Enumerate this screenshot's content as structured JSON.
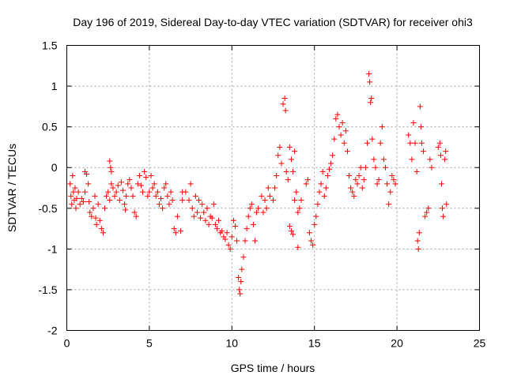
{
  "chart_data": {
    "type": "scatter",
    "title": "Day 196 of 2019, Sidereal Day-to-day VTEC variation (SDTVAR) for receiver ohi3",
    "xlabel": "GPS time / hours",
    "ylabel": "SDTVAR / TECUs",
    "xlim": [
      0,
      25
    ],
    "ylim": [
      -2,
      1.5
    ],
    "x_ticks": [
      0,
      5,
      10,
      15,
      20,
      25
    ],
    "x_tick_labels": [
      "0",
      "5",
      "10",
      "15",
      "20",
      "25"
    ],
    "y_ticks": [
      -2,
      -1.5,
      -1,
      -0.5,
      0,
      0.5,
      1,
      1.5
    ],
    "y_tick_labels": [
      "-2",
      "-1.5",
      "-1",
      "-0.5",
      "0",
      "0.5",
      "1",
      "1.5"
    ],
    "grid": true,
    "marker": "+",
    "color": "#ff0000",
    "series": [
      {
        "name": "SDTVAR",
        "points": [
          [
            0.2,
            -0.2
          ],
          [
            0.25,
            -0.35
          ],
          [
            0.3,
            -0.45
          ],
          [
            0.35,
            -0.1
          ],
          [
            0.4,
            -0.3
          ],
          [
            0.45,
            -0.4
          ],
          [
            0.5,
            -0.25
          ],
          [
            0.55,
            -0.5
          ],
          [
            0.6,
            -0.38
          ],
          [
            0.7,
            -0.3
          ],
          [
            0.8,
            -0.45
          ],
          [
            0.9,
            -0.38
          ],
          [
            1.0,
            -0.42
          ],
          [
            1.1,
            -0.3
          ],
          [
            1.1,
            -0.05
          ],
          [
            1.2,
            -0.08
          ],
          [
            1.3,
            -0.2
          ],
          [
            1.35,
            -0.42
          ],
          [
            1.4,
            -0.55
          ],
          [
            1.5,
            -0.6
          ],
          [
            1.6,
            -0.5
          ],
          [
            1.7,
            -0.35
          ],
          [
            1.75,
            -0.62
          ],
          [
            1.8,
            -0.7
          ],
          [
            1.9,
            -0.45
          ],
          [
            2.0,
            -0.65
          ],
          [
            2.1,
            -0.75
          ],
          [
            2.2,
            -0.8
          ],
          [
            2.3,
            -0.5
          ],
          [
            2.4,
            -0.35
          ],
          [
            2.5,
            -0.3
          ],
          [
            2.6,
            -0.4
          ],
          [
            2.7,
            -0.2
          ],
          [
            2.6,
            0.08
          ],
          [
            2.65,
            0.0
          ],
          [
            2.7,
            -0.05
          ],
          [
            2.8,
            -0.25
          ],
          [
            2.9,
            -0.35
          ],
          [
            3.0,
            -0.3
          ],
          [
            3.1,
            -0.22
          ],
          [
            3.2,
            -0.4
          ],
          [
            3.3,
            -0.18
          ],
          [
            3.4,
            -0.28
          ],
          [
            3.5,
            -0.45
          ],
          [
            3.55,
            -0.52
          ],
          [
            3.6,
            -0.35
          ],
          [
            3.7,
            -0.2
          ],
          [
            3.8,
            -0.15
          ],
          [
            3.9,
            -0.25
          ],
          [
            4.0,
            -0.35
          ],
          [
            4.1,
            -0.55
          ],
          [
            4.2,
            -0.6
          ],
          [
            4.3,
            -0.2
          ],
          [
            4.4,
            -0.1
          ],
          [
            4.5,
            -0.22
          ],
          [
            4.6,
            -0.3
          ],
          [
            4.7,
            -0.05
          ],
          [
            4.8,
            -0.12
          ],
          [
            4.9,
            -0.35
          ],
          [
            5.0,
            -0.3
          ],
          [
            5.1,
            -0.1
          ],
          [
            5.2,
            -0.25
          ],
          [
            5.3,
            -0.2
          ],
          [
            5.4,
            -0.35
          ],
          [
            5.5,
            -0.3
          ],
          [
            5.6,
            -0.45
          ],
          [
            5.7,
            -0.38
          ],
          [
            5.8,
            -0.5
          ],
          [
            5.9,
            -0.25
          ],
          [
            6.0,
            -0.2
          ],
          [
            6.1,
            -0.35
          ],
          [
            6.2,
            -0.45
          ],
          [
            6.3,
            -0.3
          ],
          [
            6.4,
            -0.4
          ],
          [
            6.5,
            -0.75
          ],
          [
            6.6,
            -0.8
          ],
          [
            6.7,
            -0.6
          ],
          [
            6.9,
            -0.78
          ],
          [
            7.0,
            -0.4
          ],
          [
            7.0,
            -0.3
          ],
          [
            7.2,
            -0.3
          ],
          [
            7.4,
            -0.4
          ],
          [
            7.5,
            -0.2
          ],
          [
            7.6,
            -0.5
          ],
          [
            7.7,
            -0.6
          ],
          [
            7.8,
            -0.35
          ],
          [
            7.9,
            -0.55
          ],
          [
            8.0,
            -0.4
          ],
          [
            8.1,
            -0.62
          ],
          [
            8.2,
            -0.45
          ],
          [
            8.3,
            -0.55
          ],
          [
            8.4,
            -0.65
          ],
          [
            8.5,
            -0.5
          ],
          [
            8.6,
            -0.7
          ],
          [
            8.7,
            -0.6
          ],
          [
            8.8,
            -0.62
          ],
          [
            8.9,
            -0.45
          ],
          [
            9.0,
            -0.7
          ],
          [
            9.1,
            -0.75
          ],
          [
            9.2,
            -0.65
          ],
          [
            9.3,
            -0.8
          ],
          [
            9.4,
            -0.78
          ],
          [
            9.5,
            -0.85
          ],
          [
            9.6,
            -0.88
          ],
          [
            9.7,
            -0.8
          ],
          [
            9.8,
            -0.95
          ],
          [
            9.9,
            -1.0
          ],
          [
            10.0,
            -0.85
          ],
          [
            10.1,
            -0.65
          ],
          [
            10.2,
            -0.72
          ],
          [
            10.3,
            -0.9
          ],
          [
            10.4,
            -1.35
          ],
          [
            10.45,
            -1.5
          ],
          [
            10.5,
            -1.55
          ],
          [
            10.55,
            -1.4
          ],
          [
            10.6,
            -1.25
          ],
          [
            10.7,
            -1.1
          ],
          [
            10.8,
            -0.9
          ],
          [
            10.9,
            -0.75
          ],
          [
            11.0,
            -0.6
          ],
          [
            11.1,
            -0.5
          ],
          [
            11.2,
            -0.45
          ],
          [
            11.3,
            -0.7
          ],
          [
            11.4,
            -0.9
          ],
          [
            11.5,
            -0.55
          ],
          [
            11.6,
            -0.5
          ],
          [
            11.8,
            -0.35
          ],
          [
            11.9,
            -0.55
          ],
          [
            12.0,
            -0.4
          ],
          [
            12.1,
            -0.5
          ],
          [
            12.2,
            -0.25
          ],
          [
            12.3,
            -0.35
          ],
          [
            12.5,
            -0.4
          ],
          [
            12.6,
            -0.25
          ],
          [
            12.7,
            -0.1
          ],
          [
            12.8,
            0.15
          ],
          [
            12.9,
            0.25
          ],
          [
            13.0,
            0.05
          ],
          [
            13.1,
            0.78
          ],
          [
            13.2,
            0.85
          ],
          [
            13.25,
            0.7
          ],
          [
            13.3,
            -0.05
          ],
          [
            13.4,
            -0.15
          ],
          [
            13.5,
            0.25
          ],
          [
            13.6,
            0.1
          ],
          [
            13.7,
            -0.05
          ],
          [
            13.8,
            0.2
          ],
          [
            13.5,
            -0.72
          ],
          [
            13.6,
            -0.78
          ],
          [
            13.7,
            -0.82
          ],
          [
            13.8,
            -0.4
          ],
          [
            13.9,
            -0.3
          ],
          [
            14.0,
            -0.55
          ],
          [
            14.1,
            -0.5
          ],
          [
            14.2,
            -0.4
          ],
          [
            14.0,
            -0.98
          ],
          [
            14.5,
            -0.2
          ],
          [
            14.6,
            -0.15
          ],
          [
            14.7,
            -0.8
          ],
          [
            14.8,
            -0.9
          ],
          [
            14.9,
            -0.95
          ],
          [
            15.0,
            -0.7
          ],
          [
            15.1,
            -0.6
          ],
          [
            15.2,
            -0.45
          ],
          [
            15.3,
            -0.3
          ],
          [
            15.4,
            -0.2
          ],
          [
            15.5,
            -0.05
          ],
          [
            15.6,
            -0.35
          ],
          [
            15.7,
            -0.25
          ],
          [
            15.8,
            -0.1
          ],
          [
            15.9,
            -0.02
          ],
          [
            16.0,
            0.05
          ],
          [
            16.1,
            0.15
          ],
          [
            16.2,
            0.35
          ],
          [
            16.3,
            0.6
          ],
          [
            16.4,
            0.65
          ],
          [
            16.5,
            0.5
          ],
          [
            16.6,
            0.4
          ],
          [
            16.7,
            0.55
          ],
          [
            16.8,
            0.3
          ],
          [
            16.9,
            0.45
          ],
          [
            17.0,
            0.2
          ],
          [
            17.1,
            -0.1
          ],
          [
            17.2,
            -0.25
          ],
          [
            17.3,
            -0.3
          ],
          [
            17.4,
            -0.35
          ],
          [
            17.5,
            -0.15
          ],
          [
            17.6,
            -0.2
          ],
          [
            17.7,
            -0.1
          ],
          [
            17.8,
            0.0
          ],
          [
            17.9,
            -0.25
          ],
          [
            18.0,
            -0.15
          ],
          [
            18.1,
            0.0
          ],
          [
            18.2,
            0.3
          ],
          [
            18.3,
            1.15
          ],
          [
            18.35,
            1.05
          ],
          [
            18.4,
            0.8
          ],
          [
            18.45,
            0.85
          ],
          [
            18.5,
            0.35
          ],
          [
            18.6,
            0.1
          ],
          [
            18.7,
            0.0
          ],
          [
            18.8,
            -0.2
          ],
          [
            18.9,
            -0.15
          ],
          [
            19.0,
            0.3
          ],
          [
            19.1,
            0.5
          ],
          [
            19.2,
            0.1
          ],
          [
            19.3,
            0.0
          ],
          [
            19.4,
            -0.2
          ],
          [
            19.5,
            -0.45
          ],
          [
            19.6,
            -0.3
          ],
          [
            19.7,
            -0.1
          ],
          [
            19.8,
            -0.15
          ],
          [
            19.9,
            -0.2
          ],
          [
            20.7,
            0.4
          ],
          [
            20.8,
            0.3
          ],
          [
            20.9,
            0.1
          ],
          [
            21.0,
            0.55
          ],
          [
            21.1,
            0.3
          ],
          [
            21.2,
            -0.05
          ],
          [
            21.25,
            -0.9
          ],
          [
            21.3,
            -1.0
          ],
          [
            21.35,
            -0.8
          ],
          [
            21.4,
            0.75
          ],
          [
            21.45,
            0.5
          ],
          [
            21.5,
            0.3
          ],
          [
            21.6,
            0.2
          ],
          [
            21.7,
            -0.6
          ],
          [
            21.8,
            -0.55
          ],
          [
            21.9,
            -0.5
          ],
          [
            22.0,
            0.1
          ],
          [
            22.1,
            0.0
          ],
          [
            22.5,
            0.25
          ],
          [
            22.6,
            0.3
          ],
          [
            22.65,
            0.15
          ],
          [
            22.7,
            -0.2
          ],
          [
            22.75,
            -0.5
          ],
          [
            22.8,
            -0.6
          ],
          [
            22.9,
            0.1
          ],
          [
            22.95,
            0.2
          ],
          [
            23.0,
            -0.45
          ]
        ]
      }
    ]
  }
}
